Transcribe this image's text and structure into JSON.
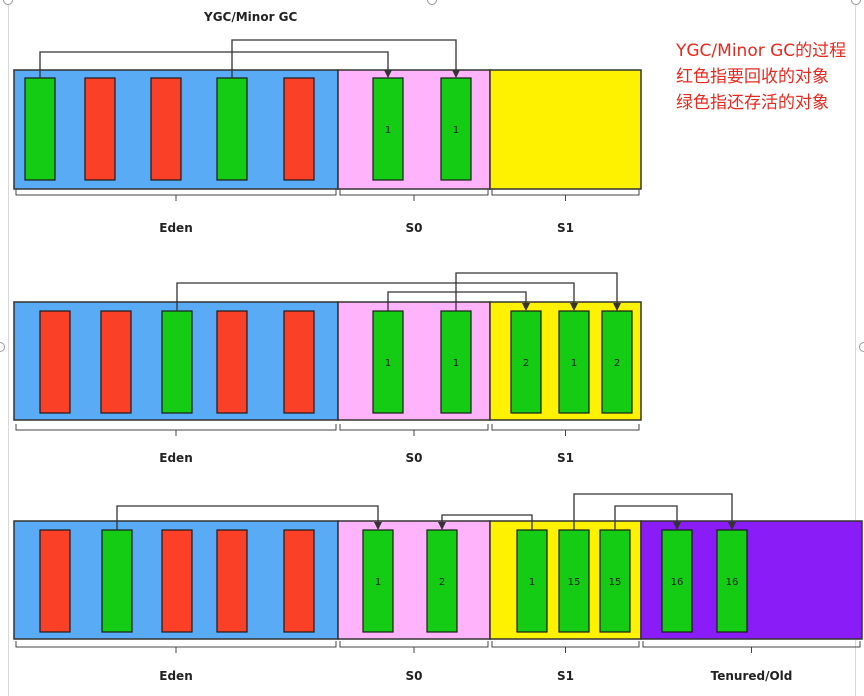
{
  "title": "YGC/Minor GC",
  "notes": [
    "YGC/Minor GC的过程",
    "红色指要回收的对象",
    "绿色指还存活的对象"
  ],
  "colors": {
    "eden": "#5aabf5",
    "s0": "#ffb3fa",
    "s1": "#fff200",
    "old": "#8a1cf7",
    "live": "#13cc13",
    "garbage": "#fa4026",
    "border": "#333333",
    "text": "#222222"
  },
  "rows": [
    {
      "regions": [
        {
          "id": "eden",
          "label": "Eden",
          "objects": [
            {
              "color": "live",
              "age": ""
            },
            {
              "color": "garbage",
              "age": ""
            },
            {
              "color": "garbage",
              "age": ""
            },
            {
              "color": "live",
              "age": ""
            },
            {
              "color": "garbage",
              "age": ""
            }
          ]
        },
        {
          "id": "s0",
          "label": "S0",
          "objects": [
            {
              "color": "live",
              "age": "1"
            },
            {
              "color": "live",
              "age": "1"
            }
          ]
        },
        {
          "id": "s1",
          "label": "S1",
          "objects": []
        }
      ],
      "arrows": [
        {
          "from": [
            "eden",
            0
          ],
          "to": [
            "s0",
            0
          ]
        },
        {
          "from": [
            "eden",
            3
          ],
          "to": [
            "s0",
            1
          ]
        }
      ]
    },
    {
      "regions": [
        {
          "id": "eden",
          "label": "Eden",
          "objects": [
            {
              "color": "garbage",
              "age": ""
            },
            {
              "color": "garbage",
              "age": ""
            },
            {
              "color": "live",
              "age": ""
            },
            {
              "color": "garbage",
              "age": ""
            },
            {
              "color": "garbage",
              "age": ""
            }
          ]
        },
        {
          "id": "s0",
          "label": "S0",
          "objects": [
            {
              "color": "live",
              "age": "1"
            },
            {
              "color": "live",
              "age": "1"
            }
          ]
        },
        {
          "id": "s1",
          "label": "S1",
          "objects": [
            {
              "color": "live",
              "age": "2"
            },
            {
              "color": "live",
              "age": "1"
            },
            {
              "color": "live",
              "age": "2"
            }
          ]
        }
      ],
      "arrows": [
        {
          "from": [
            "s0",
            0
          ],
          "to": [
            "s1",
            0
          ]
        },
        {
          "from": [
            "eden",
            2
          ],
          "to": [
            "s1",
            1
          ]
        },
        {
          "from": [
            "s0",
            1
          ],
          "to": [
            "s1",
            2
          ]
        }
      ]
    },
    {
      "regions": [
        {
          "id": "eden",
          "label": "Eden",
          "objects": [
            {
              "color": "garbage",
              "age": ""
            },
            {
              "color": "live",
              "age": ""
            },
            {
              "color": "garbage",
              "age": ""
            },
            {
              "color": "garbage",
              "age": ""
            },
            {
              "color": "garbage",
              "age": ""
            }
          ]
        },
        {
          "id": "s0",
          "label": "S0",
          "objects": [
            {
              "color": "live",
              "age": "1"
            },
            {
              "color": "live",
              "age": "2"
            }
          ]
        },
        {
          "id": "s1",
          "label": "S1",
          "objects": [
            {
              "color": "live",
              "age": "1"
            },
            {
              "color": "live",
              "age": "15"
            },
            {
              "color": "live",
              "age": "15"
            }
          ]
        },
        {
          "id": "old",
          "label": "Tenured/Old",
          "objects": [
            {
              "color": "live",
              "age": "16"
            },
            {
              "color": "live",
              "age": "16"
            }
          ]
        }
      ],
      "arrows": [
        {
          "from": [
            "eden",
            1
          ],
          "to": [
            "s0",
            0
          ]
        },
        {
          "from": [
            "s1",
            0
          ],
          "to": [
            "s0",
            1
          ]
        },
        {
          "from": [
            "s1",
            2
          ],
          "to": [
            "old",
            0
          ]
        },
        {
          "from": [
            "s1",
            1
          ],
          "to": [
            "old",
            1
          ]
        }
      ]
    }
  ]
}
